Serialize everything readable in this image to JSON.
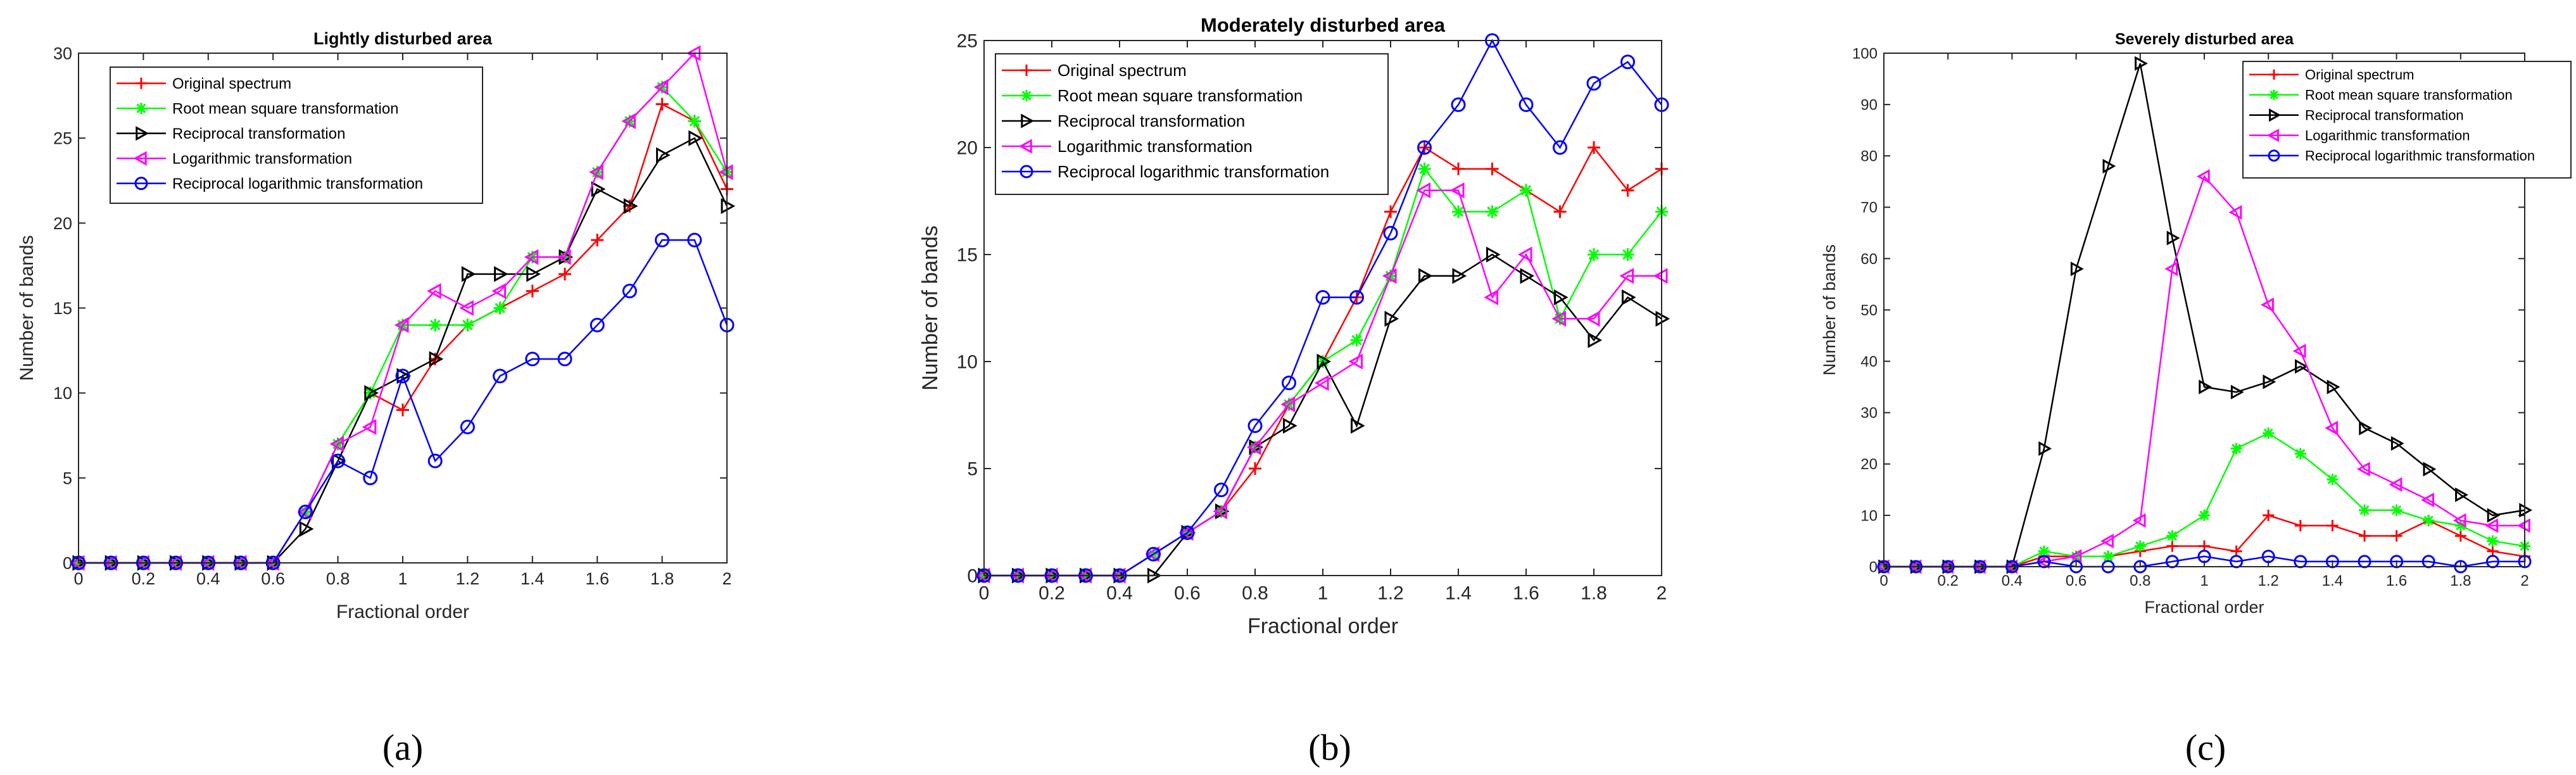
{
  "chart_data": [
    {
      "type": "line",
      "title": "Lightly disturbed area",
      "xlabel": "Fractional order",
      "ylabel": "Number of bands",
      "xlim": [
        0,
        2
      ],
      "ylim": [
        0,
        30
      ],
      "xticks": [
        0,
        0.2,
        0.4,
        0.6,
        0.8,
        1,
        1.2,
        1.4,
        1.6,
        1.8,
        2
      ],
      "yticks": [
        0,
        5,
        10,
        15,
        20,
        25,
        30
      ],
      "legend_position": "top-left",
      "caption": "(a)",
      "x": [
        0,
        0.1,
        0.2,
        0.3,
        0.4,
        0.5,
        0.6,
        0.7,
        0.8,
        0.9,
        1.0,
        1.1,
        1.2,
        1.3,
        1.4,
        1.5,
        1.6,
        1.7,
        1.8,
        1.9,
        2.0
      ],
      "series": [
        {
          "name": "Original spectrum",
          "color": "#ff0000",
          "marker": "plus",
          "values": [
            0,
            0,
            0,
            0,
            0,
            0,
            0,
            3,
            7,
            10,
            9,
            12,
            14,
            15,
            16,
            17,
            19,
            21,
            27,
            26,
            22
          ]
        },
        {
          "name": "Root mean square transformation",
          "color": "#00ff00",
          "marker": "asterisk",
          "values": [
            0,
            0,
            0,
            0,
            0,
            0,
            0,
            3,
            7,
            10,
            14,
            14,
            14,
            15,
            18,
            18,
            23,
            26,
            28,
            26,
            23
          ]
        },
        {
          "name": "Reciprocal transformation",
          "color": "#000000",
          "marker": "triangle-right",
          "values": [
            0,
            0,
            0,
            0,
            0,
            0,
            0,
            2,
            6,
            10,
            11,
            12,
            17,
            17,
            17,
            18,
            22,
            21,
            24,
            25,
            21
          ]
        },
        {
          "name": "Logarithmic transformation",
          "color": "#ff00ff",
          "marker": "triangle-left",
          "values": [
            0,
            0,
            0,
            0,
            0,
            0,
            0,
            3,
            7,
            8,
            14,
            16,
            15,
            16,
            18,
            18,
            23,
            26,
            28,
            30,
            23
          ]
        },
        {
          "name": "Reciprocal logarithmic transformation",
          "color": "#0000ff",
          "marker": "circle",
          "values": [
            0,
            0,
            0,
            0,
            0,
            0,
            0,
            3,
            6,
            5,
            11,
            6,
            8,
            11,
            12,
            12,
            14,
            16,
            19,
            19,
            14
          ]
        }
      ]
    },
    {
      "type": "line",
      "title": "Moderately disturbed area",
      "xlabel": "Fractional order",
      "ylabel": "Number of bands",
      "xlim": [
        0,
        2
      ],
      "ylim": [
        0,
        25
      ],
      "xticks": [
        0,
        0.2,
        0.4,
        0.6,
        0.8,
        1,
        1.2,
        1.4,
        1.6,
        1.8,
        2
      ],
      "yticks": [
        0,
        5,
        10,
        15,
        20,
        25
      ],
      "legend_position": "top-left",
      "caption": "(b)",
      "x": [
        0,
        0.1,
        0.2,
        0.3,
        0.4,
        0.5,
        0.6,
        0.7,
        0.8,
        0.9,
        1.0,
        1.1,
        1.2,
        1.3,
        1.4,
        1.5,
        1.6,
        1.7,
        1.8,
        1.9,
        2.0
      ],
      "series": [
        {
          "name": "Original spectrum",
          "color": "#ff0000",
          "marker": "plus",
          "values": [
            0,
            0,
            0,
            0,
            0,
            1,
            2,
            3,
            5,
            8,
            10,
            13,
            17,
            20,
            19,
            19,
            18,
            17,
            20,
            18,
            19
          ]
        },
        {
          "name": "Root mean square transformation",
          "color": "#00ff00",
          "marker": "asterisk",
          "values": [
            0,
            0,
            0,
            0,
            0,
            1,
            2,
            3,
            6,
            8,
            10,
            11,
            14,
            19,
            17,
            17,
            18,
            12,
            15,
            15,
            17
          ]
        },
        {
          "name": "Reciprocal transformation",
          "color": "#000000",
          "marker": "triangle-right",
          "values": [
            0,
            0,
            0,
            0,
            0,
            0,
            2,
            3,
            6,
            7,
            10,
            7,
            12,
            14,
            14,
            15,
            14,
            13,
            11,
            13,
            12
          ]
        },
        {
          "name": "Logarithmic transformation",
          "color": "#ff00ff",
          "marker": "triangle-left",
          "values": [
            0,
            0,
            0,
            0,
            0,
            1,
            2,
            3,
            6,
            8,
            9,
            10,
            14,
            18,
            18,
            13,
            15,
            12,
            12,
            14,
            14
          ]
        },
        {
          "name": "Reciprocal logarithmic transformation",
          "color": "#0000ff",
          "marker": "circle",
          "values": [
            0,
            0,
            0,
            0,
            0,
            1,
            2,
            4,
            7,
            9,
            13,
            13,
            16,
            20,
            22,
            25,
            22,
            20,
            23,
            24,
            22
          ]
        }
      ]
    },
    {
      "type": "line",
      "title": "Severely disturbed area",
      "xlabel": "Fractional order",
      "ylabel": "Number of bands",
      "xlim": [
        0,
        2
      ],
      "ylim": [
        0,
        100
      ],
      "xticks": [
        0,
        0.2,
        0.4,
        0.6,
        0.8,
        1,
        1.2,
        1.4,
        1.6,
        1.8,
        2
      ],
      "yticks": [
        0,
        10,
        20,
        30,
        40,
        50,
        60,
        70,
        80,
        90,
        100
      ],
      "legend_position": "top-right",
      "caption": "(c)",
      "x": [
        0,
        0.1,
        0.2,
        0.3,
        0.4,
        0.5,
        0.6,
        0.7,
        0.8,
        0.9,
        1.0,
        1.1,
        1.2,
        1.3,
        1.4,
        1.5,
        1.6,
        1.7,
        1.8,
        1.9,
        2.0
      ],
      "series": [
        {
          "name": "Original spectrum",
          "color": "#ff0000",
          "marker": "plus",
          "values": [
            0,
            0,
            0,
            0,
            0,
            2,
            2,
            2,
            3,
            4,
            4,
            3,
            10,
            8,
            8,
            6,
            6,
            9,
            6,
            3,
            2
          ]
        },
        {
          "name": "Root mean square transformation",
          "color": "#00ff00",
          "marker": "asterisk",
          "values": [
            0,
            0,
            0,
            0,
            0,
            3,
            2,
            2,
            4,
            6,
            10,
            23,
            26,
            22,
            17,
            11,
            11,
            9,
            8,
            5,
            4
          ]
        },
        {
          "name": "Reciprocal transformation",
          "color": "#000000",
          "marker": "triangle-right",
          "values": [
            0,
            0,
            0,
            0,
            0,
            23,
            58,
            78,
            98,
            64,
            35,
            34,
            36,
            39,
            35,
            27,
            24,
            19,
            14,
            10,
            11
          ]
        },
        {
          "name": "Logarithmic transformation",
          "color": "#ff00ff",
          "marker": "triangle-left",
          "values": [
            0,
            0,
            0,
            0,
            0,
            1,
            2,
            5,
            9,
            58,
            76,
            69,
            51,
            42,
            27,
            19,
            16,
            13,
            9,
            8,
            8
          ]
        },
        {
          "name": "Reciprocal logarithmic transformation",
          "color": "#0000ff",
          "marker": "circle",
          "values": [
            0,
            0,
            0,
            0,
            0,
            1,
            0,
            0,
            0,
            1,
            2,
            1,
            2,
            1,
            1,
            1,
            1,
            1,
            0,
            1,
            1
          ]
        }
      ]
    }
  ]
}
